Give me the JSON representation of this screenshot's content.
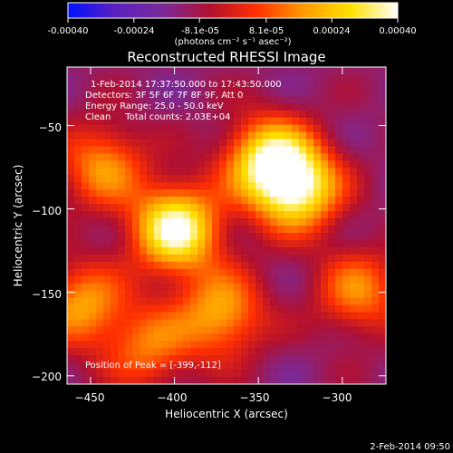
{
  "colorbar": {
    "ticks": [
      "-0.00040",
      "-0.00024",
      "-8.1e-05",
      "8.1e-05",
      "0.00024",
      "0.00040"
    ],
    "tick_values": [
      -0.0004,
      -0.00024,
      -8.1e-05,
      8.1e-05,
      0.00024,
      0.0004
    ],
    "range": [
      -0.0004,
      0.0004
    ],
    "units_label": "(photons cm⁻² s⁻¹ asec⁻²)",
    "colors": [
      "#0010ff",
      "#5a20c0",
      "#7a2a9a",
      "#b01030",
      "#ff3000",
      "#ff9a00",
      "#ffe000",
      "#ffffff"
    ]
  },
  "chart_data": {
    "type": "heatmap",
    "title": "Reconstructed RHESSI Image",
    "xlabel": "Heliocentric X (arcsec)",
    "ylabel": "Heliocentric Y (arcsec)",
    "xlim": [
      -464,
      -274
    ],
    "ylim": [
      -205,
      -15
    ],
    "xticks": [
      -450,
      -400,
      -350,
      -300
    ],
    "xtick_labels": [
      "−450",
      "−400",
      "−350",
      "−300"
    ],
    "yticks": [
      -50,
      -100,
      -150,
      -200
    ],
    "ytick_labels": [
      "−50",
      "−100",
      "−150",
      "−200"
    ],
    "sources": [
      {
        "x": -399,
        "y": -112,
        "level": 0.0004
      },
      {
        "x": -327,
        "y": -87,
        "level": 0.00036
      },
      {
        "x": -345,
        "y": -70,
        "level": 0.00028
      },
      {
        "x": -372,
        "y": -163,
        "level": 0.0002
      },
      {
        "x": -455,
        "y": -158,
        "level": 0.00018
      },
      {
        "x": -443,
        "y": -74,
        "level": 0.00016
      },
      {
        "x": -290,
        "y": -150,
        "level": 0.00014
      },
      {
        "x": -415,
        "y": -183,
        "level": 0.00012
      }
    ],
    "peak": [
      -399,
      -112
    ],
    "info_lines": [
      "1-Feb-2014 17:37:50.000 to 17:43:50.000",
      "Detectors: 3F 5F 6F 7F 8F 9F, Att 0",
      "Energy Range: 25.0 - 50.0 keV",
      "Clean     Total counts: 2.03E+04"
    ],
    "peak_label": "Position of Peak = [-399,-112]"
  },
  "timestamp": "2-Feb-2014 09:50"
}
